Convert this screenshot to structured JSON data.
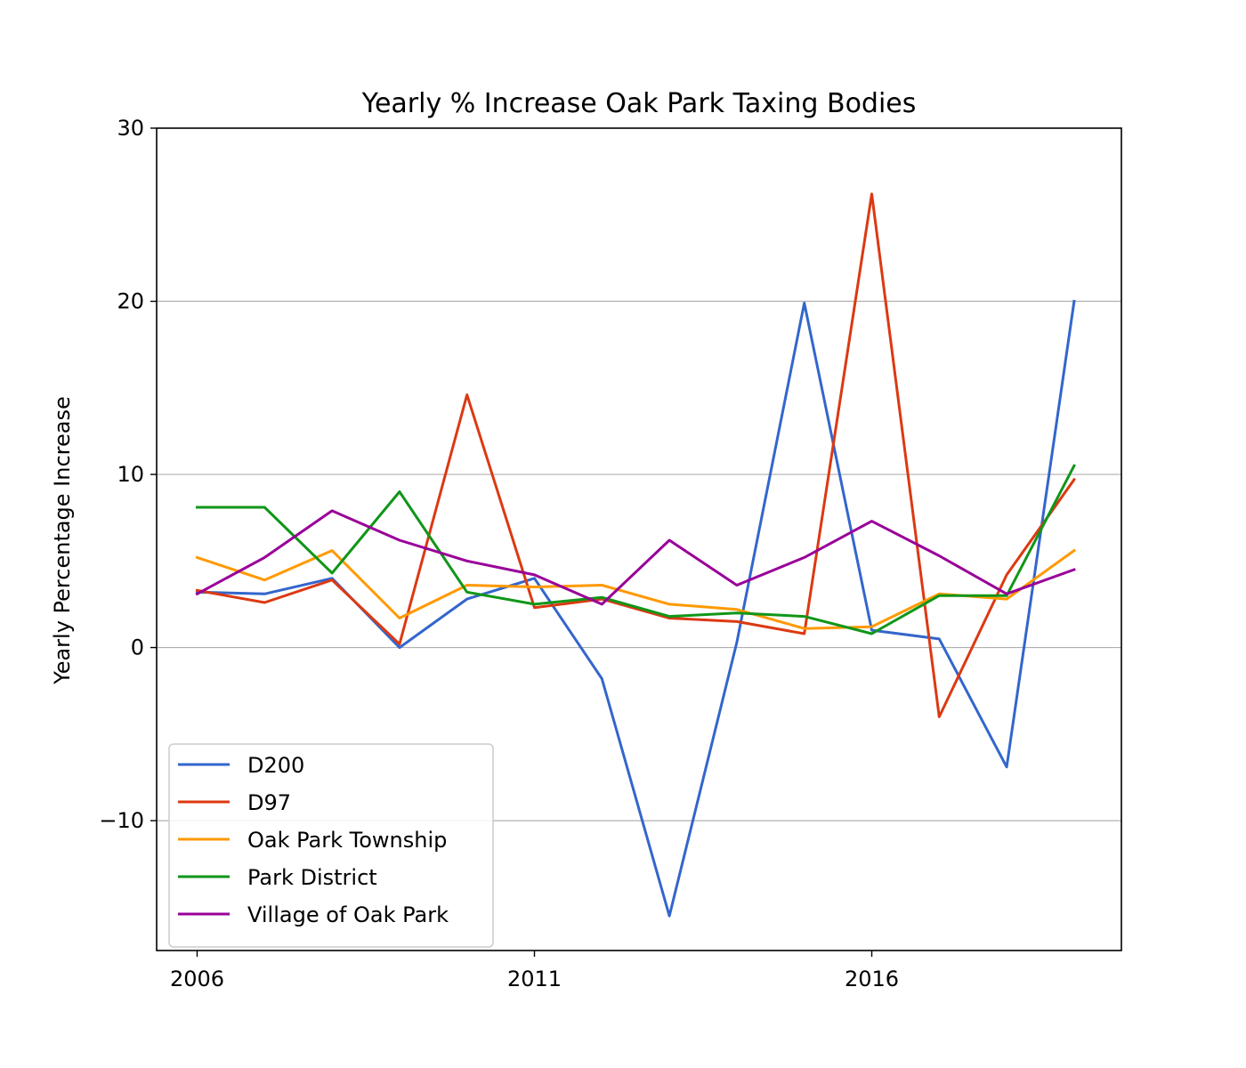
{
  "chart_data": {
    "type": "line",
    "title": "Yearly % Increase Oak Park Taxing Bodies",
    "xlabel": "",
    "ylabel": "Yearly Percentage Increase",
    "x": [
      2006,
      2007,
      2008,
      2009,
      2010,
      2011,
      2012,
      2013,
      2014,
      2015,
      2016,
      2017,
      2018,
      2019
    ],
    "xlim": [
      2005.4,
      2019.7
    ],
    "ylim": [
      -17.5,
      30
    ],
    "x_ticks": [
      2006,
      2011,
      2016
    ],
    "x_tick_labels": [
      "2006",
      "2011",
      "2016"
    ],
    "y_ticks": [
      -10,
      0,
      10,
      20,
      30
    ],
    "y_tick_labels": [
      "−10",
      "0",
      "10",
      "20",
      "30"
    ],
    "grid": "horizontal",
    "legend_position": "lower-left",
    "series": [
      {
        "name": "D200",
        "color": "#3366cc",
        "values": [
          3.2,
          3.1,
          4.0,
          0.0,
          2.8,
          4.0,
          -1.8,
          -15.5,
          0.3,
          19.9,
          1.0,
          0.5,
          -6.9,
          20.0
        ]
      },
      {
        "name": "D97",
        "color": "#dc3912",
        "values": [
          3.3,
          2.6,
          3.9,
          0.2,
          14.6,
          2.3,
          2.8,
          1.7,
          1.5,
          0.8,
          26.2,
          -4.0,
          4.2,
          9.7
        ]
      },
      {
        "name": "Oak Park Township",
        "color": "#ff9900",
        "values": [
          5.2,
          3.9,
          5.6,
          1.7,
          3.6,
          3.5,
          3.6,
          2.5,
          2.2,
          1.1,
          1.2,
          3.1,
          2.8,
          5.6
        ]
      },
      {
        "name": "Park District",
        "color": "#109618",
        "values": [
          8.1,
          8.1,
          4.3,
          9.0,
          3.2,
          2.5,
          2.9,
          1.8,
          2.0,
          1.8,
          0.8,
          3.0,
          3.0,
          10.5
        ]
      },
      {
        "name": "Village of Oak Park",
        "color": "#990099",
        "values": [
          3.1,
          5.2,
          7.9,
          6.2,
          5.0,
          4.2,
          2.5,
          6.2,
          3.6,
          5.2,
          7.3,
          5.3,
          3.1,
          4.5
        ]
      }
    ]
  }
}
